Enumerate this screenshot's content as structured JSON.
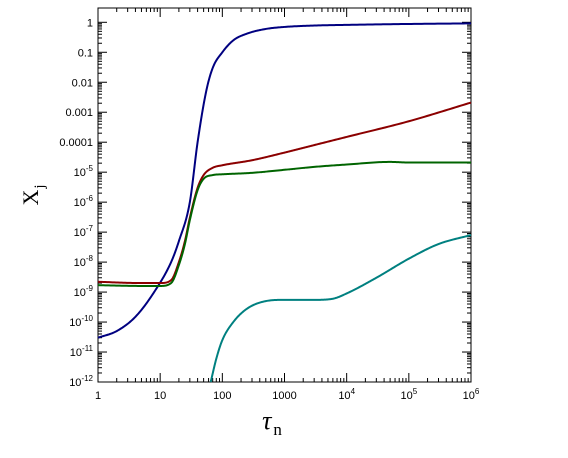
{
  "chart_data": {
    "type": "line",
    "xscale": "log",
    "yscale": "log",
    "xlim": [
      1,
      1000000
    ],
    "ylim": [
      1e-12,
      3
    ],
    "grid": false,
    "legend": "none",
    "xlabel_symbol": "τ",
    "xlabel_sub": "n",
    "ylabel_symbol": "X",
    "ylabel_sub": "j",
    "x_ticks": [
      {
        "value": 1,
        "label": "1",
        "exp": ""
      },
      {
        "value": 10,
        "label": "10",
        "exp": ""
      },
      {
        "value": 100,
        "label": "100",
        "exp": ""
      },
      {
        "value": 1000,
        "label": "1000",
        "exp": ""
      },
      {
        "value": 10000,
        "label": "10",
        "exp": "4"
      },
      {
        "value": 100000,
        "label": "10",
        "exp": "5"
      },
      {
        "value": 1000000,
        "label": "10",
        "exp": "6"
      }
    ],
    "y_ticks": [
      {
        "value": 1,
        "label": "1",
        "exp": ""
      },
      {
        "value": 0.1,
        "label": "0.1",
        "exp": ""
      },
      {
        "value": 0.01,
        "label": "0.01",
        "exp": ""
      },
      {
        "value": 0.001,
        "label": "0.001",
        "exp": ""
      },
      {
        "value": 0.0001,
        "label": "0.0001",
        "exp": ""
      },
      {
        "value": 1e-05,
        "label": "10",
        "exp": "-5"
      },
      {
        "value": 1e-06,
        "label": "10",
        "exp": "-6"
      },
      {
        "value": 1e-07,
        "label": "10",
        "exp": "-7"
      },
      {
        "value": 1e-08,
        "label": "10",
        "exp": "-8"
      },
      {
        "value": 1e-09,
        "label": "10",
        "exp": "-9"
      },
      {
        "value": 1e-10,
        "label": "10",
        "exp": "-10"
      },
      {
        "value": 1e-11,
        "label": "10",
        "exp": "-11"
      },
      {
        "value": 1e-12,
        "label": "10",
        "exp": "-12"
      }
    ],
    "series": [
      {
        "color": "#000080",
        "x": [
          1,
          2,
          4,
          8,
          15,
          20,
          30,
          40,
          55,
          70,
          100,
          150,
          250,
          500,
          1000,
          3000,
          10000,
          100000,
          1000000
        ],
        "y": [
          3e-11,
          5e-11,
          1.5e-10,
          1e-09,
          1e-08,
          5e-08,
          1e-06,
          0.0001,
          0.005,
          0.03,
          0.1,
          0.25,
          0.42,
          0.6,
          0.7,
          0.78,
          0.82,
          0.88,
          0.92
        ]
      },
      {
        "color": "#8B0000",
        "x": [
          1,
          5,
          10,
          15,
          20,
          25,
          30,
          40,
          50,
          70,
          100,
          300,
          1000,
          3000,
          10000,
          100000,
          1000000
        ],
        "y": [
          2.2e-09,
          2e-09,
          2e-09,
          2.5e-09,
          1e-08,
          5e-08,
          3e-07,
          3e-06,
          8e-06,
          1.4e-05,
          1.7e-05,
          2.5e-05,
          4.5e-05,
          8e-05,
          0.00015,
          0.0005,
          0.0021
        ]
      },
      {
        "color": "#006400",
        "x": [
          1,
          5,
          10,
          15,
          20,
          25,
          30,
          40,
          50,
          70,
          100,
          300,
          1000,
          3000,
          10000,
          50000,
          100000,
          1000000
        ],
        "y": [
          1.7e-09,
          1.6e-09,
          1.6e-09,
          2e-09,
          8e-09,
          4e-08,
          2.5e-07,
          2.5e-06,
          6e-06,
          8e-06,
          8.5e-06,
          9.5e-06,
          1.2e-05,
          1.5e-05,
          1.8e-05,
          2.2e-05,
          2.1e-05,
          2.1e-05
        ]
      },
      {
        "color": "#008080",
        "x": [
          65,
          80,
          100,
          150,
          250,
          500,
          1000,
          3000,
          6000,
          10000,
          30000,
          100000,
          300000,
          1000000
        ],
        "y": [
          1e-12,
          6e-12,
          2.5e-11,
          1e-10,
          2.8e-10,
          5e-10,
          5.5e-10,
          5.5e-10,
          6e-10,
          9e-10,
          3e-09,
          1.3e-08,
          4e-08,
          8e-08
        ]
      }
    ]
  }
}
